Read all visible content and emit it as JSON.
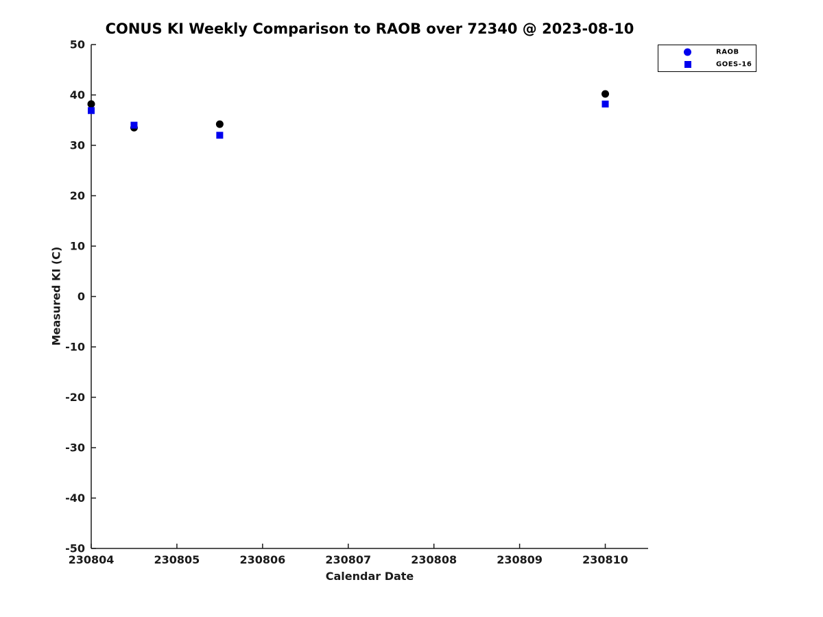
{
  "chart_data": {
    "type": "scatter",
    "title": "CONUS KI Weekly Comparison to RAOB over 72340 @ 2023-08-10",
    "xlabel": "Calendar Date",
    "ylabel": "Measured KI (C)",
    "xlim": [
      230804,
      230810.5
    ],
    "ylim": [
      -50,
      50
    ],
    "xticks": [
      230804,
      230805,
      230806,
      230807,
      230808,
      230809,
      230810
    ],
    "yticks": [
      -50,
      -40,
      -30,
      -20,
      -10,
      0,
      10,
      20,
      30,
      40,
      50
    ],
    "grid": false,
    "legend_position": "top-right-outside",
    "axis_color": "#1a1a1a",
    "background_color": "#ffffff",
    "series": [
      {
        "name": "RAOB",
        "marker": "circle",
        "color": "#000000",
        "legend_color": "#0000EE",
        "x": [
          230804.0,
          230804.5,
          230805.5,
          230810.0
        ],
        "y": [
          38.2,
          33.5,
          34.2,
          40.2
        ]
      },
      {
        "name": "GOES-16",
        "marker": "square",
        "color": "#0000EE",
        "legend_color": "#0000EE",
        "x": [
          230804.0,
          230804.5,
          230805.5,
          230810.0
        ],
        "y": [
          36.9,
          34.0,
          32.0,
          38.2
        ]
      }
    ]
  }
}
